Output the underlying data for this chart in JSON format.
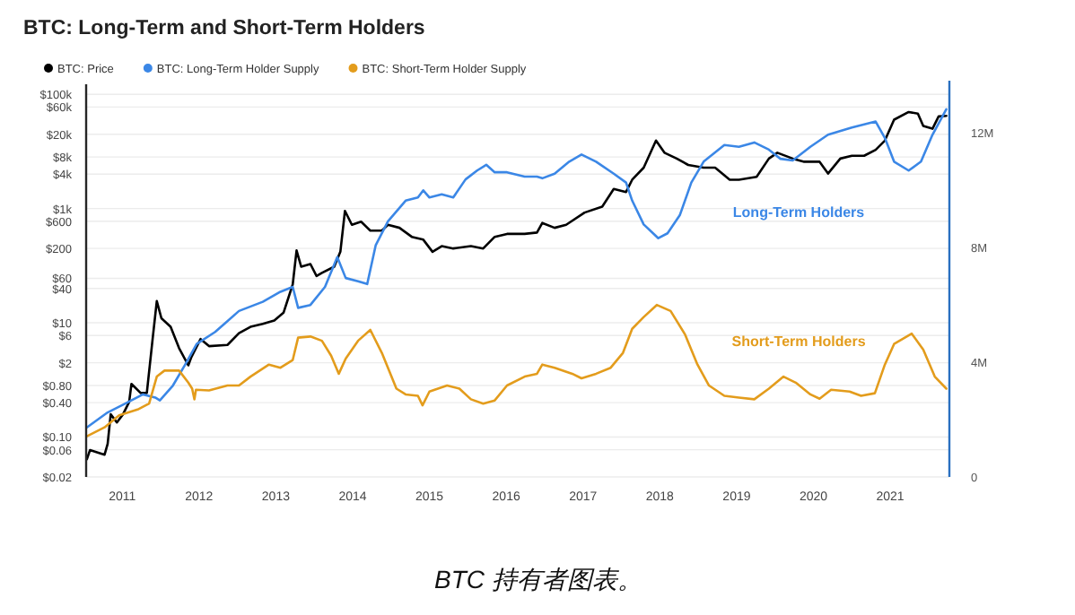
{
  "chart_data": {
    "type": "line",
    "title": "BTC: Long-Term and Short-Term Holders",
    "xlim": [
      2010.53,
      2021.77
    ],
    "xticks": [
      2011,
      2012,
      2013,
      2014,
      2015,
      2016,
      2017,
      2018,
      2019,
      2020,
      2021
    ],
    "log": "y",
    "ylim": [
      0.02,
      150000
    ],
    "yticks": [
      {
        "value": 100000,
        "label": "$100k"
      },
      {
        "value": 60000,
        "label": "$60k"
      },
      {
        "value": 20000,
        "label": "$20k"
      },
      {
        "value": 8000,
        "label": "$8k"
      },
      {
        "value": 4000,
        "label": "$4k"
      },
      {
        "value": 1000,
        "label": "$1k"
      },
      {
        "value": 600,
        "label": "$600"
      },
      {
        "value": 200,
        "label": "$200"
      },
      {
        "value": 60,
        "label": "$60"
      },
      {
        "value": 40,
        "label": "$40"
      },
      {
        "value": 10,
        "label": "$10"
      },
      {
        "value": 6,
        "label": "$6"
      },
      {
        "value": 2,
        "label": "$2"
      },
      {
        "value": 0.8,
        "label": "$0.80"
      },
      {
        "value": 0.4,
        "label": "$0.40"
      },
      {
        "value": 0.1,
        "label": "$0.10"
      },
      {
        "value": 0.06,
        "label": "$0.06"
      },
      {
        "value": 0.02,
        "label": "$0.02"
      }
    ],
    "y2lim": [
      0,
      13.7
    ],
    "y2ticks": [
      0,
      {
        "value": 4,
        "label": "4M"
      },
      {
        "value": 8,
        "label": "8M"
      },
      {
        "value": 12,
        "label": "12M"
      }
    ],
    "grid": "y",
    "legend": "top left",
    "series": [
      {
        "name": "BTC: Price",
        "color": "#000000",
        "x": [
          2010.54,
          2010.58,
          2010.77,
          2010.81,
          2010.85,
          2010.93,
          2011.01,
          2011.09,
          2011.12,
          2011.24,
          2011.32,
          2011.4,
          2011.45,
          2011.51,
          2011.63,
          2011.74,
          2011.86,
          2011.9,
          2012.02,
          2012.13,
          2012.37,
          2012.52,
          2012.67,
          2012.83,
          2012.98,
          2013.1,
          2013.22,
          2013.27,
          2013.33,
          2013.45,
          2013.53,
          2013.6,
          2013.76,
          2013.84,
          2013.9,
          2013.99,
          2014.11,
          2014.23,
          2014.38,
          2014.46,
          2014.61,
          2014.77,
          2014.92,
          2015.04,
          2015.16,
          2015.31,
          2015.54,
          2015.7,
          2015.85,
          2016.01,
          2016.24,
          2016.4,
          2016.47,
          2016.63,
          2016.78,
          2017.02,
          2017.25,
          2017.4,
          2017.56,
          2017.64,
          2017.79,
          2017.95,
          2018.06,
          2018.22,
          2018.37,
          2018.57,
          2018.72,
          2018.91,
          2019.03,
          2019.26,
          2019.42,
          2019.53,
          2019.73,
          2019.88,
          2020.08,
          2020.19,
          2020.35,
          2020.5,
          2020.66,
          2020.81,
          2020.93,
          2021.05,
          2021.24,
          2021.36,
          2021.43,
          2021.55,
          2021.63,
          2021.73
        ],
        "values": [
          0.041,
          0.059,
          0.049,
          0.076,
          0.25,
          0.18,
          0.25,
          0.41,
          0.85,
          0.59,
          0.59,
          5.9,
          24,
          12,
          8.5,
          3.6,
          1.8,
          2.5,
          5.2,
          3.9,
          4.1,
          6.6,
          8.5,
          9.6,
          11,
          15,
          47,
          185,
          96,
          107,
          66,
          75,
          96,
          175,
          910,
          520,
          590,
          410,
          410,
          520,
          460,
          320,
          285,
          175,
          220,
          200,
          220,
          200,
          320,
          360,
          360,
          380,
          560,
          460,
          520,
          850,
          1080,
          2200,
          1950,
          3200,
          5200,
          15500,
          9500,
          7500,
          5800,
          5200,
          5200,
          3200,
          3200,
          3600,
          7500,
          9500,
          7500,
          6600,
          6600,
          4100,
          7500,
          8400,
          8400,
          10700,
          15500,
          36000,
          49000,
          46000,
          28000,
          25000,
          41000,
          42000
        ]
      },
      {
        "name": "BTC: Long-Term Holder Supply",
        "color": "#3b87e6",
        "axis": "y2",
        "x": [
          2010.54,
          2010.81,
          2011.04,
          2011.27,
          2011.43,
          2011.49,
          2011.66,
          2011.82,
          2011.97,
          2012.21,
          2012.52,
          2012.83,
          2013.06,
          2013.22,
          2013.29,
          2013.45,
          2013.64,
          2013.8,
          2013.91,
          2014.07,
          2014.19,
          2014.3,
          2014.46,
          2014.69,
          2014.85,
          2014.92,
          2015.0,
          2015.16,
          2015.31,
          2015.47,
          2015.62,
          2015.74,
          2015.85,
          2016.01,
          2016.24,
          2016.4,
          2016.47,
          2016.63,
          2016.82,
          2016.98,
          2017.17,
          2017.4,
          2017.56,
          2017.64,
          2017.79,
          2017.98,
          2018.1,
          2018.26,
          2018.41,
          2018.57,
          2018.84,
          2019.03,
          2019.23,
          2019.42,
          2019.57,
          2019.73,
          2019.96,
          2020.19,
          2020.5,
          2020.81,
          2020.93,
          2021.05,
          2021.24,
          2021.4,
          2021.55,
          2021.73
        ],
        "values": [
          1.73,
          2.25,
          2.56,
          2.88,
          2.77,
          2.67,
          3.19,
          3.92,
          4.64,
          5.06,
          5.79,
          6.11,
          6.46,
          6.63,
          5.9,
          6.0,
          6.63,
          7.67,
          6.94,
          6.83,
          6.73,
          8.08,
          8.92,
          9.64,
          9.75,
          10.0,
          9.75,
          9.86,
          9.75,
          10.38,
          10.69,
          10.89,
          10.63,
          10.63,
          10.48,
          10.48,
          10.42,
          10.58,
          11.0,
          11.25,
          11.0,
          10.58,
          10.27,
          9.64,
          8.81,
          8.33,
          8.5,
          9.13,
          10.27,
          11.0,
          11.58,
          11.52,
          11.67,
          11.42,
          11.1,
          11.04,
          11.52,
          11.94,
          12.19,
          12.4,
          11.83,
          11.0,
          10.69,
          11.0,
          11.94,
          12.83
        ]
      },
      {
        "name": "BTC: Short-Term Holder Supply",
        "color": "#e39c1c",
        "axis": "y2",
        "x": [
          2010.54,
          2010.77,
          2010.96,
          2011.2,
          2011.35,
          2011.45,
          2011.55,
          2011.74,
          2011.86,
          2011.91,
          2011.94,
          2011.96,
          2012.13,
          2012.37,
          2012.52,
          2012.67,
          2012.91,
          2013.06,
          2013.22,
          2013.29,
          2013.45,
          2013.6,
          2013.72,
          2013.82,
          2013.91,
          2014.07,
          2014.23,
          2014.38,
          2014.57,
          2014.69,
          2014.85,
          2014.91,
          2015.0,
          2015.23,
          2015.39,
          2015.54,
          2015.7,
          2015.85,
          2016.01,
          2016.24,
          2016.4,
          2016.47,
          2016.63,
          2016.86,
          2016.98,
          2017.17,
          2017.36,
          2017.52,
          2017.64,
          2017.79,
          2017.96,
          2018.14,
          2018.33,
          2018.49,
          2018.64,
          2018.84,
          2019.03,
          2019.23,
          2019.42,
          2019.61,
          2019.77,
          2019.96,
          2020.08,
          2020.23,
          2020.47,
          2020.62,
          2020.8,
          2020.93,
          2021.05,
          2021.28,
          2021.43,
          2021.58,
          2021.73
        ],
        "values": [
          1.42,
          1.73,
          2.15,
          2.35,
          2.56,
          3.5,
          3.71,
          3.71,
          3.29,
          3.08,
          2.71,
          3.04,
          3.02,
          3.19,
          3.19,
          3.5,
          3.92,
          3.81,
          4.08,
          4.86,
          4.9,
          4.75,
          4.23,
          3.6,
          4.13,
          4.75,
          5.13,
          4.33,
          3.08,
          2.88,
          2.83,
          2.5,
          2.98,
          3.19,
          3.08,
          2.71,
          2.56,
          2.67,
          3.19,
          3.5,
          3.6,
          3.92,
          3.81,
          3.6,
          3.44,
          3.6,
          3.81,
          4.33,
          5.17,
          5.58,
          6.0,
          5.79,
          4.96,
          3.92,
          3.19,
          2.83,
          2.77,
          2.71,
          3.08,
          3.5,
          3.29,
          2.88,
          2.73,
          3.04,
          2.98,
          2.83,
          2.92,
          3.92,
          4.64,
          5.0,
          4.44,
          3.5,
          3.08
        ]
      }
    ],
    "annotations": [
      "Long-Term Holders",
      "Short-Term Holders",
      "BTC 持有者图表。"
    ]
  }
}
